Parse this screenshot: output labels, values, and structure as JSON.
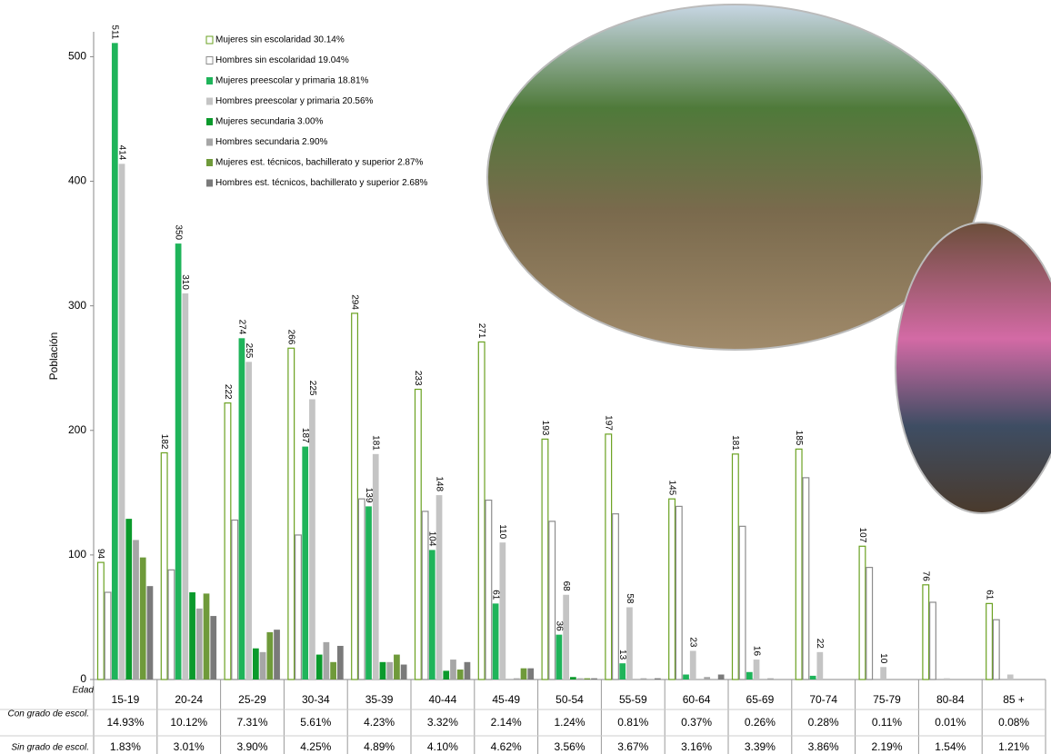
{
  "chart_data": {
    "type": "bar",
    "y_label": "Población",
    "ylim": [
      0,
      520
    ],
    "yticks": [
      0,
      100,
      200,
      300,
      400,
      500
    ],
    "categories_title": "Edad",
    "categories": [
      "15-19",
      "20-24",
      "25-29",
      "30-34",
      "35-39",
      "40-44",
      "45-49",
      "50-54",
      "55-59",
      "60-64",
      "65-69",
      "70-74",
      "75-79",
      "80-84",
      "85 +"
    ],
    "series": [
      {
        "name": "Mujeres sin escolaridad 30.14%",
        "color": "#6aa121",
        "outline": true,
        "values": [
          94,
          182,
          222,
          266,
          294,
          233,
          271,
          193,
          197,
          145,
          181,
          185,
          107,
          76,
          61
        ],
        "value_labels": [
          "94",
          "182",
          "222",
          "266",
          "294",
          "233",
          "271",
          "193",
          "197",
          "145",
          "181",
          "185",
          "107",
          "76",
          "61"
        ]
      },
      {
        "name": "Hombres sin escolaridad 19.04%",
        "color": "#8c8c8c",
        "outline": true,
        "values": [
          70,
          88,
          128,
          116,
          145,
          135,
          144,
          127,
          133,
          139,
          123,
          162,
          90,
          62,
          48
        ]
      },
      {
        "name": "Mujeres preescolar y primaria 18.81%",
        "color": "#1fb45a",
        "values": [
          511,
          350,
          274,
          187,
          139,
          104,
          61,
          36,
          13,
          4,
          6,
          3,
          0,
          0,
          0
        ],
        "value_labels": [
          "511",
          "350",
          "274",
          "187",
          "139",
          "104",
          "61",
          "36",
          "13",
          null,
          null,
          null,
          null,
          null,
          null
        ]
      },
      {
        "name": "Hombres preescolar y primaria 20.56%",
        "color": "#c4c4c4",
        "values": [
          414,
          310,
          255,
          225,
          181,
          148,
          110,
          68,
          58,
          23,
          16,
          22,
          10,
          1,
          4
        ],
        "value_labels": [
          "414",
          "310",
          "255",
          "225",
          "181",
          "148",
          "110",
          "68",
          "58",
          "23",
          "16",
          "22",
          "10",
          null,
          null
        ]
      },
      {
        "name": "Mujeres secundaria 3.00%",
        "color": "#0b9a2c",
        "values": [
          129,
          70,
          25,
          20,
          14,
          7,
          0,
          2,
          0,
          0,
          0,
          0,
          0,
          0,
          0
        ]
      },
      {
        "name": "Hombres secundaria 2.90%",
        "color": "#a6a6a6",
        "values": [
          112,
          57,
          22,
          30,
          14,
          16,
          1,
          1,
          1,
          2,
          1,
          0,
          0,
          0,
          0
        ]
      },
      {
        "name": "Mujeres est. técnicos, bachillerato y superior 2.87%",
        "color": "#6f9a3a",
        "values": [
          98,
          69,
          38,
          14,
          20,
          8,
          9,
          1,
          0,
          0,
          0,
          0,
          0,
          0,
          0
        ]
      },
      {
        "name": "Hombres est. técnicos, bachillerato y superior 2.68%",
        "color": "#7a7a7a",
        "values": [
          75,
          51,
          40,
          27,
          12,
          14,
          9,
          1,
          1,
          4,
          0,
          0,
          0,
          0,
          0
        ]
      }
    ],
    "table": {
      "rows": [
        {
          "label": "Con grado de escol.",
          "cells": [
            "14.93%",
            "10.12%",
            "7.31%",
            "5.61%",
            "4.23%",
            "3.32%",
            "2.14%",
            "1.24%",
            "0.81%",
            "0.37%",
            "0.26%",
            "0.28%",
            "0.11%",
            "0.01%",
            "0.08%"
          ]
        },
        {
          "label": "Sin grado de escol.",
          "cells": [
            "1.83%",
            "3.01%",
            "3.90%",
            "4.25%",
            "4.89%",
            "4.10%",
            "4.62%",
            "3.56%",
            "3.67%",
            "3.16%",
            "3.39%",
            "3.86%",
            "2.19%",
            "1.54%",
            "1.21%"
          ]
        }
      ]
    }
  }
}
